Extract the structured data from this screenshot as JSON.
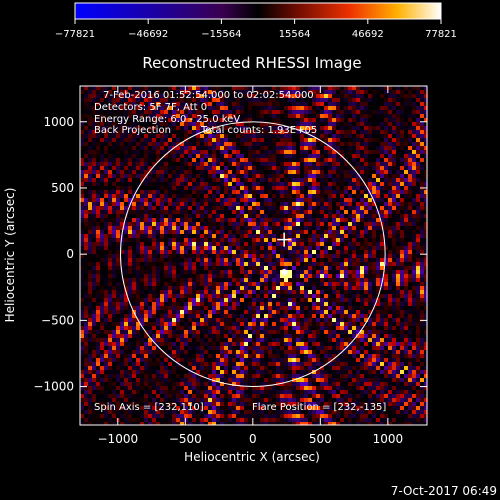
{
  "chart_data": {
    "type": "heatmap",
    "title": "Reconstructed RHESSI Image",
    "xlabel": "Heliocentric X (arcsec)",
    "ylabel": "Heliocentric Y (arcsec)",
    "xlim": [
      -1280,
      1290
    ],
    "ylim": [
      -1290,
      1270
    ],
    "xticks": [
      -1000,
      -500,
      0,
      500,
      1000
    ],
    "yticks": [
      1000,
      500,
      0,
      -500,
      -1000
    ],
    "xtick_labels": [
      "−1000",
      "−500",
      "0",
      "500",
      "1000"
    ],
    "ytick_labels": [
      "1000",
      "500",
      "0",
      "−500",
      "−1000"
    ],
    "colorbar": {
      "range": [
        -77821,
        77821
      ],
      "tick_values": [
        -77821,
        -46692,
        -15564,
        15564,
        46692,
        77821
      ],
      "tick_labels": [
        "−77821",
        "−46692",
        "−15564",
        "15564",
        "46692",
        "77821"
      ],
      "colormap": "blue-black-red-yellow-white"
    },
    "annotations": {
      "time_range": "7-Feb-2016 01:52:54.000 to 02:02:54.000",
      "detectors": "Detectors: 5F 7F, Att 0",
      "energy": "Energy Range: 6.0 - 25.0 keV",
      "method": "Back Projection",
      "counts": "Total counts: 1.93E+05",
      "spin_axis": "Spin Axis = [232,110]",
      "flare_position": "Flare Position = [232,-135]"
    },
    "solar_limb_radius": 980,
    "spin_axis": [
      232,
      110
    ],
    "flare_position": [
      232,
      -135
    ]
  },
  "footer": {
    "timestamp": "7-Oct-2017 06:49"
  },
  "colors": {
    "background": "#000000",
    "limb": "#ffffff"
  }
}
